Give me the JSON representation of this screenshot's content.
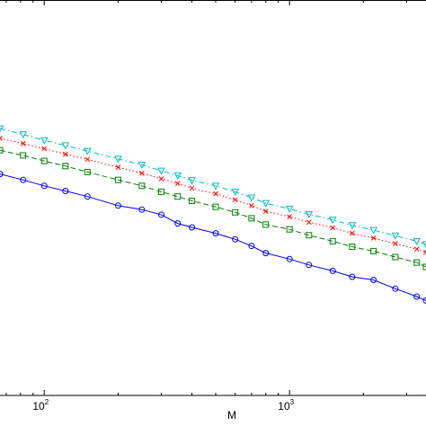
{
  "chart_data": {
    "type": "line",
    "xlabel": "M",
    "ylabel": "",
    "x_scale": "log",
    "xlim": [
      66,
      3600
    ],
    "ylim": [
      0,
      1
    ],
    "grid": false,
    "legend": "none",
    "x_ticks": [
      {
        "value": 100,
        "base": "10",
        "exp": "2"
      },
      {
        "value": 1000,
        "base": "10",
        "exp": "3"
      }
    ],
    "series": [
      {
        "color": "#0000ff",
        "dash": "solid",
        "marker": "circle",
        "x": [
          66,
          82,
          100,
          122,
          150,
          200,
          250,
          300,
          350,
          400,
          500,
          600,
          700,
          800,
          1000,
          1200,
          1500,
          1800,
          2200,
          2700,
          3300,
          3600
        ],
        "y": [
          0.56,
          0.545,
          0.53,
          0.517,
          0.503,
          0.48,
          0.47,
          0.457,
          0.435,
          0.425,
          0.41,
          0.395,
          0.378,
          0.36,
          0.345,
          0.33,
          0.315,
          0.3,
          0.292,
          0.27,
          0.25,
          0.24
        ]
      },
      {
        "color": "#008000",
        "dash": "dashed",
        "marker": "square",
        "x": [
          66,
          82,
          100,
          122,
          150,
          200,
          250,
          300,
          350,
          400,
          500,
          600,
          700,
          800,
          1000,
          1200,
          1500,
          1800,
          2200,
          2700,
          3300,
          3600
        ],
        "y": [
          0.62,
          0.607,
          0.593,
          0.58,
          0.565,
          0.545,
          0.53,
          0.515,
          0.503,
          0.492,
          0.477,
          0.463,
          0.448,
          0.432,
          0.42,
          0.405,
          0.39,
          0.376,
          0.365,
          0.35,
          0.336,
          0.325
        ]
      },
      {
        "color": "#ff0000",
        "dash": "dotted",
        "marker": "x",
        "x": [
          66,
          82,
          100,
          122,
          150,
          200,
          250,
          300,
          350,
          400,
          500,
          600,
          700,
          800,
          1000,
          1200,
          1500,
          1800,
          2200,
          2700,
          3300,
          3600
        ],
        "y": [
          0.65,
          0.637,
          0.624,
          0.61,
          0.597,
          0.577,
          0.562,
          0.548,
          0.536,
          0.524,
          0.51,
          0.495,
          0.48,
          0.466,
          0.452,
          0.438,
          0.424,
          0.41,
          0.398,
          0.384,
          0.37,
          0.362
        ]
      },
      {
        "color": "#00bfbf",
        "dash": "dashdot",
        "marker": "triangle-down",
        "x": [
          66,
          82,
          100,
          122,
          150,
          200,
          250,
          300,
          350,
          400,
          500,
          600,
          700,
          800,
          1000,
          1200,
          1500,
          1800,
          2200,
          2700,
          3300,
          3600
        ],
        "y": [
          0.675,
          0.66,
          0.645,
          0.632,
          0.618,
          0.598,
          0.583,
          0.568,
          0.556,
          0.544,
          0.53,
          0.515,
          0.5,
          0.486,
          0.472,
          0.458,
          0.444,
          0.43,
          0.418,
          0.404,
          0.39,
          0.382
        ]
      }
    ]
  }
}
